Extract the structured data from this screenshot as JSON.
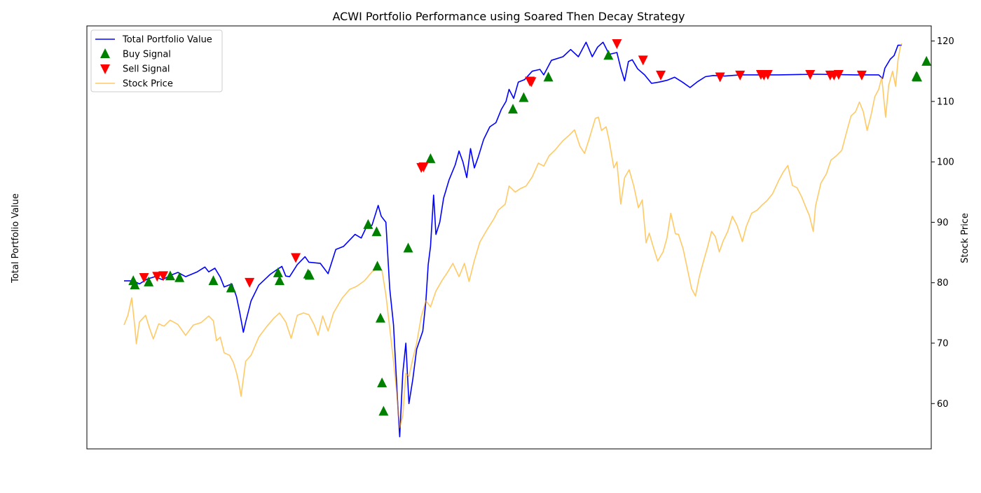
{
  "chart_data": {
    "type": "line",
    "title": "ACWI Portfolio Performance using Soared Then Decay Strategy",
    "ylabel_left": "Total Portfolio Value",
    "ylabel_right": "Stock Price",
    "right_axis": {
      "ylim": [
        52.5,
        122.5
      ],
      "ticks": [
        60,
        70,
        80,
        90,
        100,
        110,
        120
      ]
    },
    "x_range": [
      0,
      1000
    ],
    "legend": {
      "placement": "top-left",
      "entries": [
        "Total Portfolio Value",
        "Buy Signal",
        "Sell Signal",
        "Stock Price"
      ]
    },
    "colors": {
      "portfolio": "#0000ff",
      "stock": "#ffa500",
      "buy": "#008000",
      "sell": "#ff0000"
    },
    "series": [
      {
        "name": "Total Portfolio Value",
        "points": [
          [
            0,
            80.3
          ],
          [
            12,
            80.3
          ],
          [
            20,
            79.8
          ],
          [
            30,
            80.6
          ],
          [
            40,
            81.0
          ],
          [
            50,
            80.5
          ],
          [
            60,
            81.2
          ],
          [
            70,
            81.7
          ],
          [
            80,
            81.0
          ],
          [
            95,
            81.8
          ],
          [
            105,
            82.6
          ],
          [
            110,
            81.8
          ],
          [
            118,
            82.4
          ],
          [
            125,
            80.9
          ],
          [
            130,
            79.3
          ],
          [
            140,
            79.8
          ],
          [
            146,
            77.7
          ],
          [
            150,
            75.2
          ],
          [
            155,
            71.8
          ],
          [
            158,
            73.5
          ],
          [
            165,
            77.0
          ],
          [
            175,
            79.6
          ],
          [
            190,
            81.4
          ],
          [
            200,
            82.3
          ],
          [
            205,
            82.7
          ],
          [
            210,
            81.1
          ],
          [
            215,
            81.0
          ],
          [
            225,
            83.0
          ],
          [
            235,
            84.3
          ],
          [
            240,
            83.4
          ],
          [
            255,
            83.2
          ],
          [
            265,
            81.5
          ],
          [
            275,
            85.5
          ],
          [
            285,
            86.0
          ],
          [
            300,
            88.0
          ],
          [
            308,
            87.4
          ],
          [
            315,
            89.3
          ],
          [
            322,
            89.5
          ],
          [
            330,
            92.8
          ],
          [
            334,
            91.0
          ],
          [
            340,
            90.0
          ],
          [
            345,
            79.0
          ],
          [
            350,
            73.0
          ],
          [
            355,
            61.0
          ],
          [
            358,
            54.5
          ],
          [
            362,
            65.0
          ],
          [
            366,
            70.0
          ],
          [
            370,
            60.0
          ],
          [
            375,
            64.0
          ],
          [
            380,
            69.0
          ],
          [
            388,
            72.0
          ],
          [
            392,
            77.0
          ],
          [
            395,
            83.0
          ],
          [
            398,
            86.0
          ],
          [
            402,
            94.5
          ],
          [
            405,
            88.0
          ],
          [
            410,
            90.0
          ],
          [
            415,
            94.0
          ],
          [
            422,
            97.0
          ],
          [
            430,
            99.5
          ],
          [
            435,
            101.8
          ],
          [
            440,
            100.0
          ],
          [
            445,
            97.4
          ],
          [
            450,
            102.2
          ],
          [
            455,
            99.0
          ],
          [
            460,
            100.8
          ],
          [
            467,
            103.7
          ],
          [
            475,
            105.8
          ],
          [
            483,
            106.5
          ],
          [
            490,
            108.7
          ],
          [
            496,
            110.0
          ],
          [
            500,
            112.0
          ],
          [
            506,
            110.5
          ],
          [
            512,
            113.2
          ],
          [
            520,
            113.6
          ],
          [
            530,
            115.0
          ],
          [
            540,
            115.3
          ],
          [
            545,
            114.4
          ],
          [
            555,
            116.8
          ],
          [
            570,
            117.4
          ],
          [
            580,
            118.6
          ],
          [
            590,
            117.4
          ],
          [
            600,
            119.8
          ],
          [
            608,
            117.4
          ],
          [
            615,
            119.0
          ],
          [
            622,
            119.8
          ],
          [
            630,
            117.8
          ],
          [
            640,
            118.1
          ],
          [
            645,
            115.5
          ],
          [
            650,
            113.4
          ],
          [
            655,
            116.6
          ],
          [
            660,
            116.9
          ],
          [
            667,
            115.4
          ],
          [
            676,
            114.4
          ],
          [
            685,
            113.0
          ],
          [
            695,
            113.2
          ],
          [
            705,
            113.5
          ],
          [
            715,
            114.0
          ],
          [
            725,
            113.2
          ],
          [
            735,
            112.3
          ],
          [
            745,
            113.3
          ],
          [
            755,
            114.1
          ],
          [
            765,
            114.3
          ],
          [
            780,
            114.2
          ],
          [
            800,
            114.4
          ],
          [
            850,
            114.4
          ],
          [
            900,
            114.5
          ],
          [
            950,
            114.4
          ],
          [
            980,
            114.4
          ],
          [
            985,
            113.8
          ],
          [
            988,
            115.5
          ],
          [
            995,
            117.0
          ],
          [
            1000,
            117.6
          ],
          [
            1005,
            119.3
          ],
          [
            1010,
            119.3
          ]
        ]
      },
      {
        "name": "Stock Price",
        "points": [
          [
            0,
            73.0
          ],
          [
            5,
            74.6
          ],
          [
            10,
            77.5
          ],
          [
            14,
            72.7
          ],
          [
            16,
            69.9
          ],
          [
            20,
            73.5
          ],
          [
            28,
            74.6
          ],
          [
            33,
            72.5
          ],
          [
            38,
            70.7
          ],
          [
            45,
            73.2
          ],
          [
            52,
            72.8
          ],
          [
            60,
            73.8
          ],
          [
            70,
            73.1
          ],
          [
            80,
            71.3
          ],
          [
            90,
            73.0
          ],
          [
            100,
            73.4
          ],
          [
            110,
            74.5
          ],
          [
            116,
            73.7
          ],
          [
            120,
            70.4
          ],
          [
            125,
            71.0
          ],
          [
            130,
            68.4
          ],
          [
            137,
            68.0
          ],
          [
            142,
            66.8
          ],
          [
            146,
            65.1
          ],
          [
            149,
            63.4
          ],
          [
            152,
            61.2
          ],
          [
            158,
            67.0
          ],
          [
            165,
            68.0
          ],
          [
            175,
            71.0
          ],
          [
            185,
            72.7
          ],
          [
            195,
            74.2
          ],
          [
            202,
            75.0
          ],
          [
            210,
            73.5
          ],
          [
            217,
            70.8
          ],
          [
            225,
            74.6
          ],
          [
            233,
            75.0
          ],
          [
            240,
            74.7
          ],
          [
            247,
            73.0
          ],
          [
            252,
            71.3
          ],
          [
            258,
            74.5
          ],
          [
            265,
            72.0
          ],
          [
            272,
            75.0
          ],
          [
            283,
            77.4
          ],
          [
            293,
            78.9
          ],
          [
            302,
            79.4
          ],
          [
            312,
            80.3
          ],
          [
            322,
            81.8
          ],
          [
            330,
            82.4
          ],
          [
            335,
            82.0
          ],
          [
            340,
            78.0
          ],
          [
            345,
            72.5
          ],
          [
            350,
            67.0
          ],
          [
            354,
            62.0
          ],
          [
            358,
            56.0
          ],
          [
            362,
            58.0
          ],
          [
            366,
            65.0
          ],
          [
            370,
            64.5
          ],
          [
            375,
            67.4
          ],
          [
            380,
            70.0
          ],
          [
            386,
            74.4
          ],
          [
            392,
            77.0
          ],
          [
            398,
            76.0
          ],
          [
            405,
            78.6
          ],
          [
            413,
            80.4
          ],
          [
            420,
            81.7
          ],
          [
            427,
            83.2
          ],
          [
            435,
            81.0
          ],
          [
            442,
            83.2
          ],
          [
            448,
            80.2
          ],
          [
            455,
            83.7
          ],
          [
            462,
            86.7
          ],
          [
            472,
            88.9
          ],
          [
            480,
            90.5
          ],
          [
            486,
            92.0
          ],
          [
            495,
            93.0
          ],
          [
            500,
            96.0
          ],
          [
            508,
            95.0
          ],
          [
            515,
            95.6
          ],
          [
            522,
            96.0
          ],
          [
            530,
            97.5
          ],
          [
            538,
            99.8
          ],
          [
            545,
            99.3
          ],
          [
            552,
            101.0
          ],
          [
            560,
            102.0
          ],
          [
            570,
            103.5
          ],
          [
            578,
            104.4
          ],
          [
            585,
            105.3
          ],
          [
            592,
            102.6
          ],
          [
            598,
            101.4
          ],
          [
            604,
            103.8
          ],
          [
            608,
            105.5
          ],
          [
            612,
            107.2
          ],
          [
            616,
            107.4
          ],
          [
            620,
            105.2
          ],
          [
            626,
            105.8
          ],
          [
            630,
            103.5
          ],
          [
            636,
            99.0
          ],
          [
            640,
            100.0
          ],
          [
            645,
            93.0
          ],
          [
            650,
            97.4
          ],
          [
            656,
            98.7
          ],
          [
            662,
            96.0
          ],
          [
            668,
            92.4
          ],
          [
            673,
            93.7
          ],
          [
            678,
            86.6
          ],
          [
            682,
            88.2
          ],
          [
            688,
            85.6
          ],
          [
            693,
            83.6
          ],
          [
            700,
            85.1
          ],
          [
            705,
            87.4
          ],
          [
            710,
            91.5
          ],
          [
            716,
            88.1
          ],
          [
            720,
            88.0
          ],
          [
            726,
            85.6
          ],
          [
            732,
            82.0
          ],
          [
            737,
            79.0
          ],
          [
            742,
            77.8
          ],
          [
            747,
            81.0
          ],
          [
            752,
            83.3
          ],
          [
            758,
            86.0
          ],
          [
            763,
            88.5
          ],
          [
            768,
            87.6
          ],
          [
            773,
            85.1
          ],
          [
            778,
            86.9
          ],
          [
            784,
            88.5
          ],
          [
            790,
            91.0
          ],
          [
            796,
            89.5
          ],
          [
            803,
            86.8
          ],
          [
            808,
            89.3
          ],
          [
            815,
            91.5
          ],
          [
            822,
            92.0
          ],
          [
            828,
            92.8
          ],
          [
            835,
            93.6
          ],
          [
            842,
            94.7
          ],
          [
            850,
            96.9
          ],
          [
            856,
            98.3
          ],
          [
            862,
            99.4
          ],
          [
            868,
            96.1
          ],
          [
            874,
            95.7
          ],
          [
            880,
            94.2
          ],
          [
            885,
            92.6
          ],
          [
            890,
            91.1
          ],
          [
            895,
            88.5
          ],
          [
            898,
            92.7
          ],
          [
            905,
            96.5
          ],
          [
            912,
            98.0
          ],
          [
            918,
            100.3
          ],
          [
            925,
            101.0
          ],
          [
            932,
            101.9
          ],
          [
            938,
            104.8
          ],
          [
            944,
            107.6
          ],
          [
            950,
            108.3
          ],
          [
            955,
            109.9
          ],
          [
            960,
            108.3
          ],
          [
            965,
            105.2
          ],
          [
            970,
            107.7
          ],
          [
            975,
            110.8
          ],
          [
            980,
            112.0
          ],
          [
            984,
            114.0
          ],
          [
            987,
            110.0
          ],
          [
            989,
            107.4
          ],
          [
            993,
            112.7
          ],
          [
            998,
            115.0
          ],
          [
            1002,
            112.5
          ],
          [
            1005,
            116.8
          ],
          [
            1008,
            119.0
          ],
          [
            1010,
            119.6
          ]
        ]
      }
    ],
    "buy_signals": [
      [
        12,
        80.3
      ],
      [
        14,
        79.6
      ],
      [
        32,
        80.1
      ],
      [
        60,
        81.1
      ],
      [
        72,
        80.8
      ],
      [
        116,
        80.3
      ],
      [
        139,
        79.1
      ],
      [
        200,
        81.6
      ],
      [
        202,
        80.3
      ],
      [
        239,
        81.4
      ],
      [
        241,
        81.2
      ],
      [
        317,
        89.6
      ],
      [
        328,
        88.4
      ],
      [
        329,
        82.7
      ],
      [
        333,
        74.1
      ],
      [
        335,
        63.4
      ],
      [
        337,
        58.7
      ],
      [
        369,
        85.7
      ],
      [
        398,
        100.5
      ],
      [
        505,
        108.7
      ],
      [
        519,
        110.6
      ],
      [
        551,
        114.0
      ],
      [
        629,
        117.6
      ],
      [
        1029,
        114.1
      ],
      [
        1030,
        114.0
      ],
      [
        1042,
        116.6
      ]
    ],
    "sell_signals": [
      [
        26,
        80.9
      ],
      [
        43,
        81.1
      ],
      [
        51,
        81.2
      ],
      [
        163,
        80.1
      ],
      [
        223,
        84.2
      ],
      [
        386,
        99.1
      ],
      [
        389,
        99.2
      ],
      [
        527,
        113.4
      ],
      [
        529,
        113.3
      ],
      [
        640,
        119.6
      ],
      [
        674,
        116.9
      ],
      [
        697,
        114.4
      ],
      [
        774,
        114.1
      ],
      [
        800,
        114.4
      ],
      [
        827,
        114.5
      ],
      [
        831,
        114.4
      ],
      [
        836,
        114.5
      ],
      [
        891,
        114.5
      ],
      [
        917,
        114.4
      ],
      [
        922,
        114.4
      ],
      [
        928,
        114.5
      ],
      [
        958,
        114.4
      ]
    ]
  }
}
